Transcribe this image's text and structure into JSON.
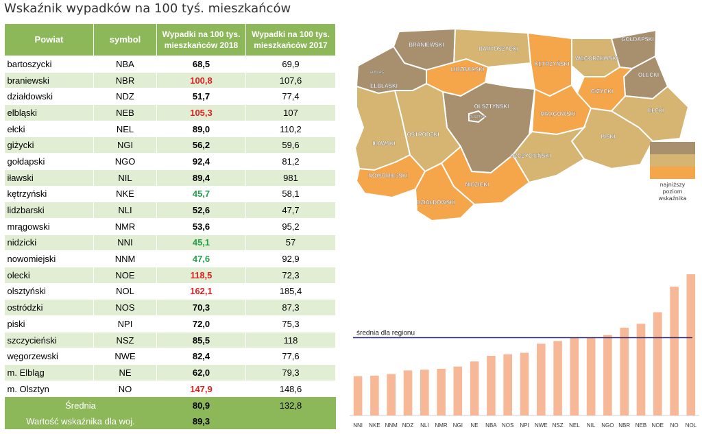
{
  "title": "Wskaźnik wypadków na 100 tyś. mieszkańców",
  "table": {
    "headers": [
      "Powiat",
      "symbol",
      "Wypadki na 100 tys. mieszkańców 2018",
      "Wypadki na 100 tys. mieszkańców 2017"
    ],
    "rows": [
      {
        "powiat": "bartoszycki",
        "symbol": "NBA",
        "v2018": "68,5",
        "v2017": "69,9",
        "hl": ""
      },
      {
        "powiat": "braniewski",
        "symbol": "NBR",
        "v2018": "100,8",
        "v2017": "107,6",
        "hl": "red"
      },
      {
        "powiat": "działdowski",
        "symbol": "NDZ",
        "v2018": "51,7",
        "v2017": "77,4",
        "hl": ""
      },
      {
        "powiat": "elbląski",
        "symbol": "NEB",
        "v2018": "105,3",
        "v2017": "107",
        "hl": "red"
      },
      {
        "powiat": "ełcki",
        "symbol": "NEL",
        "v2018": "89,0",
        "v2017": "110,2",
        "hl": ""
      },
      {
        "powiat": "giżycki",
        "symbol": "NGI",
        "v2018": "56,2",
        "v2017": "59,6",
        "hl": ""
      },
      {
        "powiat": "gołdapski",
        "symbol": "NGO",
        "v2018": "92,4",
        "v2017": "81,2",
        "hl": ""
      },
      {
        "powiat": "iławski",
        "symbol": "NIL",
        "v2018": "89,4",
        "v2017": "981",
        "hl": ""
      },
      {
        "powiat": "kętrzyński",
        "symbol": "NKE",
        "v2018": "45,7",
        "v2017": "58,1",
        "hl": "green"
      },
      {
        "powiat": "lidzbarski",
        "symbol": "NLI",
        "v2018": "52,6",
        "v2017": "47,7",
        "hl": ""
      },
      {
        "powiat": "mrągowski",
        "symbol": "NMR",
        "v2018": "53,6",
        "v2017": "95,2",
        "hl": ""
      },
      {
        "powiat": "nidzicki",
        "symbol": "NNI",
        "v2018": "45,1",
        "v2017": "57",
        "hl": "green"
      },
      {
        "powiat": "nowomiejski",
        "symbol": "NNM",
        "v2018": "47,6",
        "v2017": "92,9",
        "hl": "green"
      },
      {
        "powiat": "olecki",
        "symbol": "NOE",
        "v2018": "118,5",
        "v2017": "72,3",
        "hl": "red"
      },
      {
        "powiat": "olsztyński",
        "symbol": "NOL",
        "v2018": "162,1",
        "v2017": "185,4",
        "hl": "red"
      },
      {
        "powiat": "ostródzki",
        "symbol": "NOS",
        "v2018": "70,3",
        "v2017": "87,3",
        "hl": ""
      },
      {
        "powiat": "piski",
        "symbol": "NPI",
        "v2018": "72,0",
        "v2017": "75,3",
        "hl": ""
      },
      {
        "powiat": "szczycieński",
        "symbol": "NSZ",
        "v2018": "85,5",
        "v2017": "118",
        "hl": ""
      },
      {
        "powiat": "węgorzewski",
        "symbol": "NWE",
        "v2018": "82,4",
        "v2017": "77,6",
        "hl": ""
      },
      {
        "powiat": "m. Elbląg",
        "symbol": "NE",
        "v2018": "62,0",
        "v2017": "79,3",
        "hl": ""
      },
      {
        "powiat": "m. Olsztyn",
        "symbol": "NO",
        "v2018": "147,9",
        "v2017": "148,6",
        "hl": "red"
      }
    ],
    "avg_label": "Średnia",
    "avg_2018": "80,9",
    "avg_2017": "132,8",
    "woj_label": "Wartość wskaźnika dla woj.",
    "woj_2018": "89,3"
  },
  "map": {
    "regions": [
      {
        "name": "BRANIEWSKI",
        "fill": "dark"
      },
      {
        "name": "BARTOSZYCKI",
        "fill": "mid"
      },
      {
        "name": "KĘTRZYŃSKI",
        "fill": "light"
      },
      {
        "name": "WĘGORZEWSKI",
        "fill": "mid"
      },
      {
        "name": "GOŁDAPSKI",
        "fill": "dark"
      },
      {
        "name": "ELBLĄG",
        "fill": "dark"
      },
      {
        "name": "ELBLĄSKI",
        "fill": "dark"
      },
      {
        "name": "LIDZBARSKI",
        "fill": "light"
      },
      {
        "name": "OLECKI",
        "fill": "dark"
      },
      {
        "name": "GIŻYCKI",
        "fill": "light"
      },
      {
        "name": "OLSZTYŃSKI",
        "fill": "dark"
      },
      {
        "name": "OLSZTYN",
        "fill": "dark"
      },
      {
        "name": "MRĄGOWSKI",
        "fill": "light"
      },
      {
        "name": "EŁCKI",
        "fill": "mid"
      },
      {
        "name": "OSTRÓDZKI",
        "fill": "mid"
      },
      {
        "name": "IŁAWSKI",
        "fill": "mid"
      },
      {
        "name": "PISKI",
        "fill": "mid"
      },
      {
        "name": "SZCZYCIEŃSKI",
        "fill": "mid"
      },
      {
        "name": "NOWOMIEJSKI",
        "fill": "light"
      },
      {
        "name": "NIDZICKI",
        "fill": "light"
      },
      {
        "name": "DZIAŁDOWSKI",
        "fill": "light"
      }
    ],
    "colors": {
      "dark": "#a8906e",
      "mid": "#d6b572",
      "light": "#f5a54a",
      "border": "#ffffff"
    },
    "legend_text": "najniższy poziom wskaźnika"
  },
  "chart_data": {
    "type": "bar",
    "categories": [
      "NNI",
      "NKE",
      "NNM",
      "NDZ",
      "NLI",
      "NMR",
      "NGI",
      "NE",
      "NBA",
      "NOS",
      "NPI",
      "NWE",
      "NSZ",
      "NEL",
      "NIL",
      "NGO",
      "NBR",
      "NEB",
      "NOE",
      "NO",
      "NOL"
    ],
    "values": [
      45.1,
      45.7,
      47.6,
      51.7,
      52.6,
      53.6,
      56.2,
      62.0,
      68.5,
      70.3,
      72.0,
      82.4,
      85.5,
      89.0,
      89.4,
      92.4,
      100.8,
      105.3,
      118.5,
      147.9,
      162.1
    ],
    "reference_line": {
      "label": "średnia dla regionu",
      "value": 89.3
    },
    "bar_color": "#f7b898",
    "line_color": "#2b2b6e"
  }
}
